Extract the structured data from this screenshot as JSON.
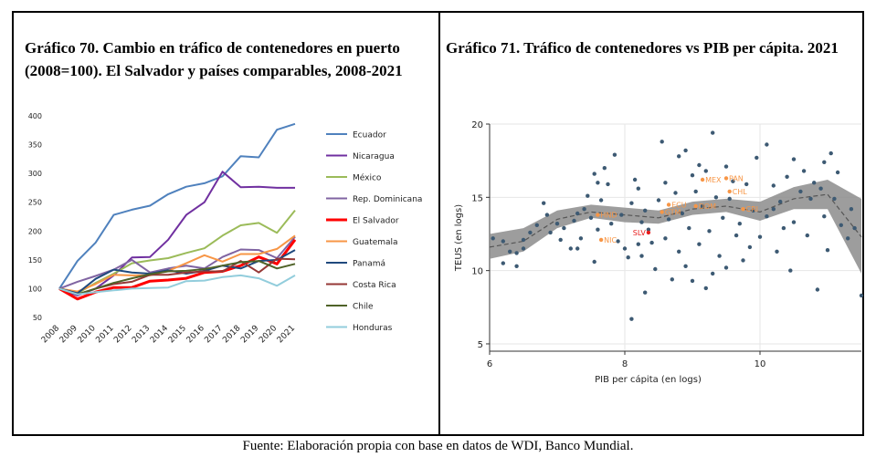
{
  "titles": {
    "chart70": "Gráfico 70. Cambio en tráfico de contenedores en puerto (2008=100). El Salvador y países comparables, 2008-2021",
    "chart71": "Gráfico 71. Tráfico de contenedores vs PIB per cápita. 2021"
  },
  "source": "Fuente: Elaboración propia con base en datos de WDI, Banco Mundial.",
  "chart_data": [
    {
      "type": "line",
      "title": "Gráfico 70. Cambio en tráfico de contenedores en puerto (2008=100). El Salvador y países comparables, 2008-2021",
      "categories": [
        "2008",
        "2009",
        "2010",
        "2011",
        "2012",
        "2013",
        "2014",
        "2015",
        "2016",
        "2017",
        "2018",
        "2019",
        "2020",
        "2021"
      ],
      "yticks": [
        "400",
        "350",
        "300",
        "250",
        "200",
        "150",
        "100",
        "50"
      ],
      "ylim": [
        50,
        400
      ],
      "grid": false,
      "legend": "right",
      "series": [
        {
          "name": "Ecuador",
          "color": "#4f81bd",
          "values": [
            100,
            148,
            180,
            228,
            237,
            244,
            264,
            277,
            283,
            295,
            330,
            328,
            376,
            386
          ]
        },
        {
          "name": "Nicaragua",
          "color": "#7030a0",
          "values": [
            100,
            88,
            100,
            123,
            154,
            155,
            185,
            228,
            250,
            303,
            276,
            277,
            275,
            275
          ]
        },
        {
          "name": "México",
          "color": "#9bbb59",
          "values": [
            100,
            92,
            110,
            126,
            144,
            149,
            153,
            162,
            170,
            192,
            210,
            214,
            197,
            236
          ]
        },
        {
          "name": "Rep. Dominicana",
          "color": "#8064a2",
          "values": [
            100,
            112,
            122,
            133,
            150,
            128,
            135,
            140,
            135,
            155,
            168,
            167,
            153,
            190
          ]
        },
        {
          "name": "El Salvador",
          "color": "#ff0000",
          "values": [
            100,
            82,
            94,
            102,
            102,
            113,
            115,
            118,
            128,
            130,
            140,
            155,
            143,
            185
          ]
        },
        {
          "name": "Guatemala",
          "color": "#f79646",
          "values": [
            100,
            95,
            108,
            124,
            123,
            123,
            131,
            144,
            158,
            147,
            160,
            160,
            169,
            192
          ]
        },
        {
          "name": "Panamá",
          "color": "#1f497d",
          "values": [
            100,
            92,
            117,
            133,
            128,
            126,
            132,
            126,
            131,
            140,
            135,
            148,
            150,
            167
          ]
        },
        {
          "name": "Costa Rica",
          "color": "#953735",
          "values": [
            100,
            90,
            100,
            108,
            112,
            124,
            124,
            128,
            130,
            130,
            148,
            128,
            152,
            151
          ]
        },
        {
          "name": "Chile",
          "color": "#4f6228",
          "values": [
            100,
            90,
            100,
            110,
            118,
            125,
            130,
            131,
            134,
            140,
            146,
            148,
            135,
            143
          ]
        },
        {
          "name": "Honduras",
          "color": "#92cddc",
          "values": [
            100,
            90,
            94,
            97,
            100,
            101,
            102,
            113,
            114,
            120,
            123,
            118,
            105,
            123
          ]
        }
      ]
    },
    {
      "type": "scatter",
      "title": "Gráfico 71. Tráfico de contenedores vs PIB per cápita. 2021",
      "xlabel": "PIB per cápita (en logs)",
      "ylabel": "TEUS (en logs)",
      "xlim": [
        6,
        11.5
      ],
      "ylim": [
        4.5,
        20
      ],
      "xticks": [
        6,
        8,
        10
      ],
      "yticks": [
        5,
        10,
        15,
        20
      ],
      "grid": true,
      "points": [
        [
          6.05,
          12.2
        ],
        [
          6.2,
          12
        ],
        [
          6.2,
          10.5
        ],
        [
          6.3,
          11.3
        ],
        [
          6.4,
          10.3
        ],
        [
          6.4,
          11.2
        ],
        [
          6.5,
          11.5
        ],
        [
          6.5,
          12.1
        ],
        [
          6.6,
          12.6
        ],
        [
          6.7,
          13.1
        ],
        [
          6.8,
          14.6
        ],
        [
          6.9,
          12.6
        ],
        [
          7.0,
          13.2
        ],
        [
          7.05,
          12.1
        ],
        [
          7.1,
          12.9
        ],
        [
          7.2,
          11.5
        ],
        [
          7.25,
          13.4
        ],
        [
          7.3,
          13.9
        ],
        [
          7.3,
          11.5
        ],
        [
          7.35,
          12.2
        ],
        [
          7.4,
          14.2
        ],
        [
          7.45,
          15.1
        ],
        [
          7.5,
          13.6
        ],
        [
          7.55,
          10.6
        ],
        [
          7.6,
          12.8
        ],
        [
          7.6,
          16.0
        ],
        [
          7.65,
          14.8
        ],
        [
          7.7,
          17.0
        ],
        [
          7.75,
          15.9
        ],
        [
          7.8,
          13.2
        ],
        [
          7.9,
          12.0
        ],
        [
          7.95,
          13.8
        ],
        [
          8.0,
          11.5
        ],
        [
          8.05,
          10.9
        ],
        [
          8.1,
          14.6
        ],
        [
          8.15,
          16.2
        ],
        [
          8.2,
          15.6
        ],
        [
          8.2,
          11.8
        ],
        [
          8.25,
          13.3
        ],
        [
          8.3,
          8.5
        ],
        [
          8.3,
          14.1
        ],
        [
          8.35,
          12.8
        ],
        [
          8.4,
          11.9
        ],
        [
          8.45,
          10.1
        ],
        [
          8.5,
          14.8
        ],
        [
          8.55,
          18.8
        ],
        [
          8.6,
          12.2
        ],
        [
          8.6,
          16.0
        ],
        [
          8.65,
          13.5
        ],
        [
          8.7,
          9.4
        ],
        [
          8.75,
          15.3
        ],
        [
          8.8,
          17.8
        ],
        [
          8.8,
          11.3
        ],
        [
          8.85,
          13.9
        ],
        [
          8.9,
          10.3
        ],
        [
          8.95,
          12.9
        ],
        [
          9.0,
          16.5
        ],
        [
          9.0,
          9.3
        ],
        [
          9.05,
          15.4
        ],
        [
          9.1,
          17.2
        ],
        [
          9.1,
          11.8
        ],
        [
          9.15,
          14.4
        ],
        [
          9.2,
          8.8
        ],
        [
          9.2,
          16.8
        ],
        [
          9.25,
          12.7
        ],
        [
          9.3,
          19.4
        ],
        [
          9.35,
          15.0
        ],
        [
          9.4,
          11.0
        ],
        [
          9.45,
          13.6
        ],
        [
          9.5,
          17.1
        ],
        [
          9.5,
          10.2
        ],
        [
          9.55,
          14.9
        ],
        [
          9.6,
          16.1
        ],
        [
          9.65,
          12.4
        ],
        [
          9.7,
          13.2
        ],
        [
          9.75,
          10.7
        ],
        [
          9.8,
          15.9
        ],
        [
          9.85,
          11.6
        ],
        [
          9.9,
          14.1
        ],
        [
          10.0,
          12.3
        ],
        [
          10.1,
          18.6
        ],
        [
          10.1,
          13.7
        ],
        [
          10.2,
          15.8
        ],
        [
          10.25,
          11.3
        ],
        [
          10.3,
          14.7
        ],
        [
          10.35,
          12.9
        ],
        [
          10.4,
          16.4
        ],
        [
          10.45,
          10.0
        ],
        [
          10.5,
          17.6
        ],
        [
          10.5,
          13.3
        ],
        [
          10.6,
          15.4
        ],
        [
          10.65,
          16.8
        ],
        [
          10.7,
          12.4
        ],
        [
          10.75,
          14.9
        ],
        [
          10.8,
          16.0
        ],
        [
          10.85,
          8.7
        ],
        [
          10.9,
          15.6
        ],
        [
          10.95,
          13.7
        ],
        [
          11.0,
          11.4
        ],
        [
          11.05,
          18.0
        ],
        [
          11.1,
          14.9
        ],
        [
          11.15,
          16.7
        ],
        [
          11.2,
          13.1
        ],
        [
          11.3,
          12.2
        ],
        [
          11.35,
          14.2
        ],
        [
          11.4,
          12.9
        ],
        [
          11.5,
          8.3
        ],
        [
          10.95,
          17.4
        ],
        [
          8.1,
          6.7
        ],
        [
          7.55,
          16.6
        ],
        [
          8.25,
          11.0
        ],
        [
          9.3,
          9.8
        ],
        [
          7.85,
          17.9
        ],
        [
          8.9,
          18.2
        ],
        [
          10.2,
          14.2
        ],
        [
          6.85,
          13.8
        ],
        [
          9.95,
          17.7
        ]
      ],
      "labeled_points": [
        {
          "label": "MEX",
          "x": 9.15,
          "y": 16.2,
          "color": "#f79646"
        },
        {
          "label": "PAN",
          "x": 9.5,
          "y": 16.3,
          "color": "#f79646"
        },
        {
          "label": "CHL",
          "x": 9.55,
          "y": 15.4,
          "color": "#f79646"
        },
        {
          "label": "ECU",
          "x": 8.65,
          "y": 14.5,
          "color": "#f79646"
        },
        {
          "label": "CRI",
          "x": 9.75,
          "y": 14.2,
          "color": "#f79646"
        },
        {
          "label": "DOM",
          "x": 9.05,
          "y": 14.4,
          "color": "#f79646"
        },
        {
          "label": "GTM",
          "x": 8.55,
          "y": 14.0,
          "color": "#f79646"
        },
        {
          "label": "HND",
          "x": 7.6,
          "y": 13.8,
          "color": "#f79646"
        },
        {
          "label": "NIC",
          "x": 7.65,
          "y": 12.1,
          "color": "#f79646"
        },
        {
          "label": "SLV",
          "x": 8.35,
          "y": 12.6,
          "color": "#e81c1c"
        }
      ],
      "fit": {
        "x": [
          6.0,
          6.5,
          7.0,
          7.5,
          8.0,
          8.5,
          9.0,
          9.5,
          10.0,
          10.5,
          11.0,
          11.5
        ],
        "y": [
          11.6,
          12.0,
          13.5,
          14.0,
          13.8,
          13.6,
          14.2,
          14.4,
          14.0,
          14.9,
          15.2,
          12.3
        ],
        "lower": [
          10.8,
          11.3,
          12.9,
          13.6,
          13.3,
          13.2,
          13.8,
          14.0,
          13.4,
          14.2,
          14.2,
          9.8
        ],
        "upper": [
          12.5,
          12.9,
          14.1,
          14.5,
          14.3,
          14.1,
          14.7,
          14.9,
          14.7,
          15.7,
          16.2,
          14.9
        ]
      }
    }
  ]
}
